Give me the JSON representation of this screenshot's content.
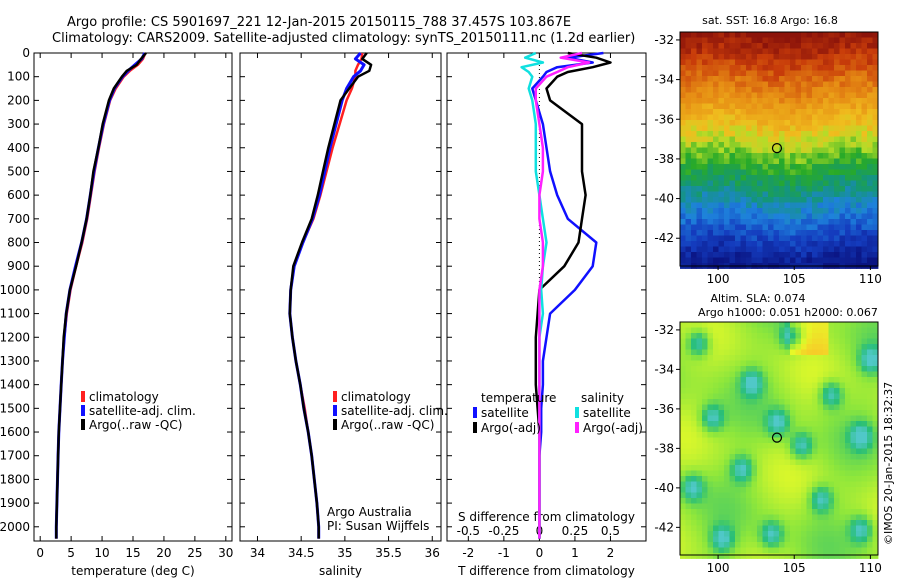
{
  "header": {
    "line1": "Argo profile: CS 5901697_221 12-Jan-2015 20150115_788 37.457S 103.867E",
    "line2": "Climatology: CARS2009. Satellite-adjusted climatology: synTS_20150111.nc (1.2d earlier)"
  },
  "colors": {
    "climatology": "#ff2020",
    "satellite": "#1010ff",
    "argo": "#000000",
    "sat_salinity": "#10e0e0",
    "argo_salinity": "#ff20ff"
  },
  "chart_data": [
    {
      "type": "line",
      "id": "temperature",
      "xlabel": "temperature (deg C)",
      "xlim": [
        -1,
        31
      ],
      "xticks": [
        0,
        5,
        10,
        15,
        20,
        25,
        30
      ],
      "ylim": [
        2060,
        0
      ],
      "yticks": [
        0,
        100,
        200,
        300,
        400,
        500,
        600,
        700,
        800,
        900,
        1000,
        1100,
        1200,
        1300,
        1400,
        1500,
        1600,
        1700,
        1800,
        1900,
        2000
      ],
      "depth": [
        0,
        25,
        50,
        75,
        100,
        150,
        200,
        300,
        400,
        500,
        600,
        700,
        800,
        900,
        1000,
        1100,
        1200,
        1300,
        1400,
        1500,
        1600,
        1700,
        1800,
        1900,
        2000,
        2050
      ],
      "series": [
        {
          "name": "climatology",
          "values": [
            17.0,
            16.6,
            15.8,
            14.5,
            13.5,
            12.2,
            11.3,
            10.3,
            9.5,
            8.8,
            8.2,
            7.6,
            6.8,
            5.8,
            4.9,
            4.3,
            3.9,
            3.6,
            3.4,
            3.2,
            3.0,
            2.9,
            2.8,
            2.7,
            2.6,
            2.6
          ]
        },
        {
          "name": "satellite-adj. clim.",
          "values": [
            16.9,
            16.4,
            15.3,
            14.2,
            13.3,
            12.0,
            11.2,
            10.2,
            9.4,
            8.7,
            8.1,
            7.5,
            6.7,
            5.7,
            4.8,
            4.2,
            3.9,
            3.6,
            3.4,
            3.2,
            3.0,
            2.9,
            2.8,
            2.7,
            2.6,
            2.6
          ]
        },
        {
          "name": "Argo(..raw -QC)",
          "values": [
            17.1,
            16.3,
            15.6,
            14.0,
            13.2,
            11.9,
            11.1,
            10.1,
            9.4,
            8.6,
            8.1,
            7.5,
            6.7,
            5.8,
            4.8,
            4.2,
            3.8,
            3.6,
            3.4,
            3.2,
            3.0,
            2.9,
            2.8,
            2.7,
            2.6,
            2.6
          ]
        }
      ],
      "legend": [
        "climatology",
        "satellite-adj. clim.",
        "Argo(..raw -QC)"
      ]
    },
    {
      "type": "line",
      "id": "salinity",
      "xlabel": "salinity",
      "xlim": [
        33.8,
        36.1
      ],
      "xticks": [
        34,
        34.5,
        35,
        35.5,
        36
      ],
      "ylim": [
        2060,
        0
      ],
      "depth": [
        0,
        25,
        50,
        75,
        100,
        150,
        200,
        300,
        400,
        500,
        600,
        700,
        800,
        900,
        1000,
        1100,
        1200,
        1300,
        1400,
        1500,
        1600,
        1700,
        1800,
        1900,
        2000,
        2050
      ],
      "series": [
        {
          "name": "climatology",
          "values": [
            35.2,
            35.19,
            35.15,
            35.12,
            35.12,
            35.08,
            35.02,
            34.94,
            34.86,
            34.79,
            34.72,
            34.64,
            34.52,
            34.42,
            34.38,
            34.37,
            34.4,
            34.44,
            34.49,
            34.54,
            34.58,
            34.62,
            34.65,
            34.68,
            34.7,
            34.7
          ]
        },
        {
          "name": "satellite-adj. clim.",
          "values": [
            35.18,
            35.12,
            35.22,
            35.18,
            35.1,
            35.02,
            34.97,
            34.9,
            34.83,
            34.77,
            34.71,
            34.63,
            34.52,
            34.42,
            34.38,
            34.37,
            34.4,
            34.44,
            34.49,
            34.53,
            34.58,
            34.62,
            34.65,
            34.68,
            34.7,
            34.7
          ]
        },
        {
          "name": "Argo(..raw -QC)",
          "values": [
            35.25,
            35.2,
            35.3,
            35.28,
            35.15,
            35.05,
            34.95,
            34.88,
            34.81,
            34.75,
            34.69,
            34.62,
            34.51,
            34.41,
            34.38,
            34.37,
            34.4,
            34.44,
            34.49,
            34.53,
            34.58,
            34.62,
            34.65,
            34.68,
            34.7,
            34.7
          ]
        }
      ],
      "legend": [
        "climatology",
        "satellite-adj. clim.",
        "Argo(..raw -QC)"
      ],
      "annotation": [
        "Argo Australia",
        "PI: Susan Wijffels"
      ]
    },
    {
      "type": "line",
      "id": "difference",
      "xlabel": "T difference from climatology",
      "xlabel_top": "S difference from climatology",
      "xlim": [
        -2.6,
        3.0
      ],
      "xticks": [
        -2,
        -1,
        0,
        1,
        2
      ],
      "x2ticks": [
        -0.5,
        -0.25,
        0,
        0.25,
        0.5
      ],
      "x2ticklabels": [
        "-0.5",
        "-0.25",
        "0",
        "0.25",
        "0.5"
      ],
      "ylim": [
        2060,
        0
      ],
      "depth": [
        0,
        20,
        40,
        60,
        80,
        100,
        150,
        200,
        300,
        400,
        500,
        600,
        700,
        800,
        900,
        1000,
        1100,
        1200,
        1300,
        1400,
        1500,
        1600,
        1700,
        1800,
        1900,
        2000,
        2050
      ],
      "series": [
        {
          "name": "satellite",
          "values": [
            1.8,
            0.8,
            1.5,
            0.5,
            0.2,
            0.1,
            -0.2,
            -0.1,
            0.1,
            0.2,
            0.3,
            0.5,
            0.8,
            1.6,
            1.5,
            1.0,
            0.3,
            0.2,
            0.1,
            0.1,
            0.05,
            0.05,
            0.0,
            0.0,
            0.0,
            0.0,
            0.0
          ]
        },
        {
          "name": "Argo(-adj)",
          "values": [
            0.8,
            1.6,
            2.0,
            1.5,
            0.8,
            0.5,
            0.2,
            0.3,
            1.2,
            1.2,
            1.2,
            1.3,
            1.2,
            1.1,
            0.7,
            0.0,
            -0.05,
            -0.1,
            -0.1,
            -0.1,
            -0.05,
            0.0,
            0.0,
            0.0,
            0.0,
            0.0,
            0.0
          ]
        },
        {
          "name": "satellite salinity",
          "values": [
            -0.1,
            -0.4,
            0.1,
            -0.5,
            -0.3,
            -0.2,
            -0.3,
            -0.2,
            -0.1,
            -0.1,
            -0.1,
            0.0,
            0.1,
            0.2,
            0.1,
            0.05,
            0.1,
            0.0,
            0.0,
            0.0,
            0.0,
            0.0,
            0.0,
            0.0,
            0.0,
            0.0,
            0.0
          ]
        },
        {
          "name": "Argo salinity(-adj)",
          "values": [
            1.2,
            0.6,
            1.4,
            0.8,
            0.5,
            0.2,
            -0.1,
            -0.1,
            0.0,
            0.1,
            0.1,
            0.0,
            0.0,
            0.1,
            0.1,
            0.0,
            0.0,
            0.0,
            0.0,
            0.0,
            0.0,
            0.0,
            0.0,
            0.0,
            0.0,
            0.0,
            0.0
          ]
        }
      ],
      "legend": {
        "temperature_title": "temperature",
        "salinity_title": "salinity",
        "items": [
          "satellite",
          "Argo(-adj)",
          "satellite",
          "Argo(-adj)"
        ]
      }
    },
    {
      "type": "heatmap",
      "id": "sst_map",
      "title": "sat. SST: 16.8 Argo: 16.8",
      "xlim": [
        97.5,
        110.5
      ],
      "xticks": [
        100,
        105,
        110
      ],
      "ylim": [
        -43.4,
        -31.6
      ],
      "yticks": [
        -32,
        -34,
        -36,
        -38,
        -40,
        -42
      ],
      "marker": {
        "lon": 103.867,
        "lat": -37.457
      }
    },
    {
      "type": "heatmap",
      "id": "sla_map",
      "title": "Altim. SLA: 0.074",
      "subtitle": "Argo h1000: 0.051 h2000: 0.067",
      "xlim": [
        97.5,
        110.5
      ],
      "xticks": [
        100,
        105,
        110
      ],
      "ylim": [
        -43.4,
        -31.6
      ],
      "yticks": [
        -32,
        -34,
        -36,
        -38,
        -40,
        -42
      ],
      "marker": {
        "lon": 103.867,
        "lat": -37.457
      }
    }
  ],
  "watermark": "©IMOS 20-Jan-2015 18:32:37"
}
